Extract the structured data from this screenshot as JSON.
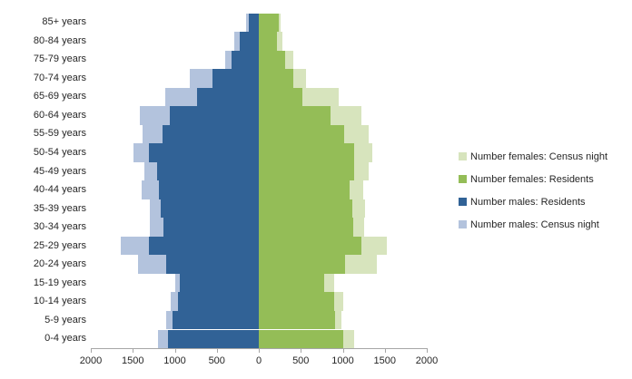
{
  "chart_data": {
    "type": "bar",
    "variant": "population-pyramid-overlapped",
    "title": "",
    "categories": [
      "85+ years",
      "80-84 years",
      "75-79 years",
      "70-74 years",
      "65-69 years",
      "60-64 years",
      "55-59 years",
      "50-54 years",
      "45-49 years",
      "40-44 years",
      "35-39 years",
      "30-34 years",
      "25-29 years",
      "20-24 years",
      "15-19 years",
      "10-14 years",
      "5-9 years",
      "0-4 years"
    ],
    "x_axis": {
      "tick_labels": [
        "2000",
        "1500",
        "1000",
        "500",
        "0",
        "500",
        "1000",
        "1500",
        "2000"
      ],
      "tick_values": [
        -2000,
        -1500,
        -1000,
        -500,
        0,
        500,
        1000,
        1500,
        2000
      ],
      "max_abs": 2000,
      "tick_step": 500,
      "gridlines": false
    },
    "series": [
      {
        "name": "Number females: Census night",
        "side": "right",
        "layer": "back",
        "color": "#d7e4bd",
        "values": [
          255,
          285,
          415,
          565,
          955,
          1225,
          1310,
          1350,
          1305,
          1240,
          1265,
          1255,
          1525,
          1410,
          900,
          1000,
          980,
          1130
        ]
      },
      {
        "name": "Number females: Residents",
        "side": "right",
        "layer": "front",
        "color": "#94bd57",
        "values": [
          235,
          220,
          315,
          415,
          520,
          855,
          1020,
          1130,
          1130,
          1080,
          1110,
          1120,
          1220,
          1025,
          780,
          900,
          910,
          1010
        ]
      },
      {
        "name": "Number males: Residents",
        "side": "left",
        "layer": "front",
        "color": "#316296",
        "values": [
          120,
          230,
          325,
          550,
          740,
          1055,
          1150,
          1310,
          1210,
          1190,
          1165,
          1135,
          1305,
          1105,
          945,
          960,
          1025,
          1080
        ]
      },
      {
        "name": "Number males: Census night",
        "side": "left",
        "layer": "back",
        "color": "#b3c3dd",
        "values": [
          155,
          290,
          405,
          820,
          1115,
          1420,
          1380,
          1490,
          1360,
          1390,
          1300,
          1295,
          1645,
          1440,
          1000,
          1045,
          1100,
          1195
        ]
      }
    ],
    "legend": {
      "position": "right",
      "entries": [
        "Number females: Census night",
        "Number females: Residents",
        "Number males: Residents",
        "Number males: Census night"
      ]
    }
  }
}
